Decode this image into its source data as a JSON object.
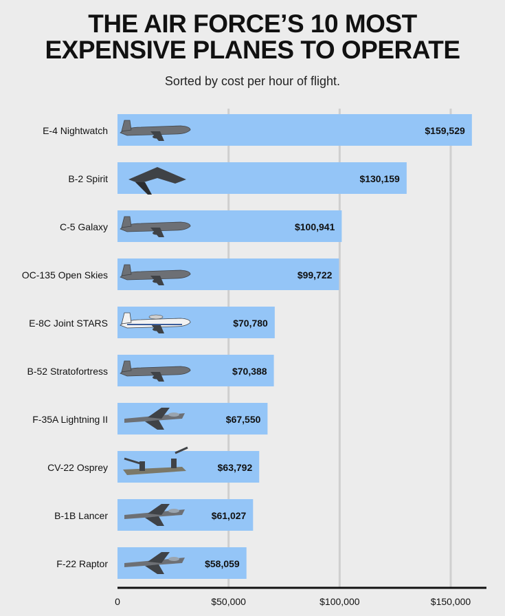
{
  "title_line1": "THE AIR FORCE’S 10 MOST",
  "title_line2": "EXPENSIVE PLANES TO OPERATE",
  "subtitle": "Sorted by cost per hour of flight.",
  "colors": {
    "bar": "#94c5f7",
    "background": "#ececec",
    "gridline": "#cfcfcf",
    "axis": "#111111",
    "text": "#111111"
  },
  "chart_data": {
    "type": "bar",
    "orientation": "horizontal",
    "title": "THE AIR FORCE’S 10 MOST EXPENSIVE PLANES TO OPERATE",
    "subtitle": "Sorted by cost per hour of flight.",
    "categories": [
      "E-4 Nightwatch",
      "B-2 Spirit",
      "C-5 Galaxy",
      "OC-135 Open Skies",
      "E-8C Joint STARS",
      "B-52 Stratofortress",
      "F-35A Lightning II",
      "CV-22 Osprey",
      "B-1B Lancer",
      "F-22 Raptor"
    ],
    "values": [
      159529,
      130159,
      100941,
      99722,
      70780,
      70388,
      67550,
      63792,
      61027,
      58059
    ],
    "value_labels": [
      "$159,529",
      "$130,159",
      "$100,941",
      "$99,722",
      "$70,780",
      "$70,388",
      "$67,550",
      "$63,792",
      "$61,027",
      "$58,059"
    ],
    "icons": [
      "e4-nightwatch-plane-icon",
      "b2-spirit-plane-icon",
      "c5-galaxy-plane-icon",
      "oc135-open-skies-plane-icon",
      "e8c-joint-stars-plane-icon",
      "b52-stratofortress-plane-icon",
      "f35a-lightning-plane-icon",
      "cv22-osprey-plane-icon",
      "b1b-lancer-plane-icon",
      "f22-raptor-plane-icon"
    ],
    "xticks": [
      0,
      50000,
      100000,
      150000
    ],
    "xtick_labels": [
      "0",
      "$50,000",
      "$100,000",
      "$150,000"
    ],
    "xlim": [
      0,
      165000
    ],
    "xlabel": "",
    "ylabel": "",
    "grid": true,
    "legend": "none"
  }
}
